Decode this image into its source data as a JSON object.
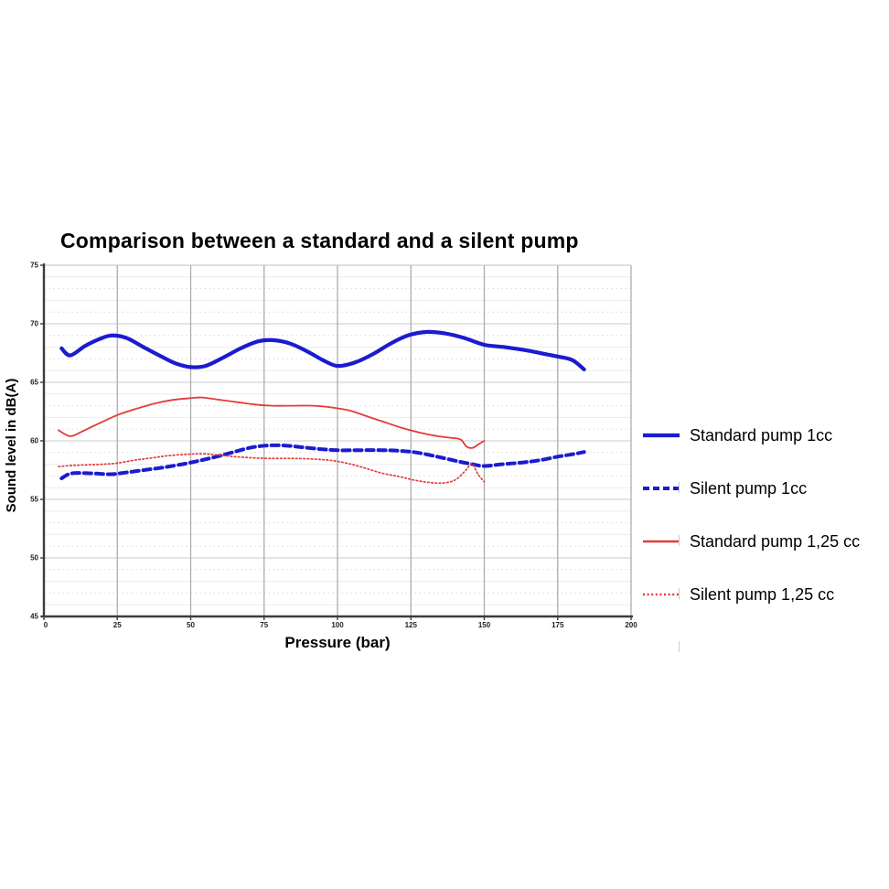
{
  "chart_data": {
    "type": "line",
    "title": "Comparison between a standard and a silent pump",
    "xlabel": "Pressure (bar)",
    "ylabel": "Sound level in dB(A)",
    "xlim": [
      0,
      200
    ],
    "ylim": [
      45,
      75
    ],
    "x_ticks": [
      0,
      25,
      50,
      75,
      100,
      125,
      150,
      175,
      200
    ],
    "y_ticks": [
      45,
      50,
      55,
      60,
      65,
      70,
      75
    ],
    "y_minor_step": 1,
    "grid": true,
    "legend_position": "right",
    "colors": {
      "blue": "#1b1bd0",
      "red": "#e33b3b",
      "grid_major": "#c9c9c9",
      "grid_minor": "#ebebeb",
      "grid_vertical": "#adadad",
      "axis": "#3c3c3c",
      "tick_label": "#222222"
    },
    "series": [
      {
        "name": "Standard pump 1cc",
        "color": "#1b1bd0",
        "style": "solid",
        "width": 4.2,
        "points": [
          [
            6,
            67.9
          ],
          [
            9,
            67.3
          ],
          [
            14,
            68.1
          ],
          [
            19,
            68.7
          ],
          [
            23,
            69.0
          ],
          [
            28,
            68.8
          ],
          [
            34,
            68.0
          ],
          [
            40,
            67.2
          ],
          [
            45,
            66.6
          ],
          [
            50,
            66.3
          ],
          [
            55,
            66.4
          ],
          [
            61,
            67.1
          ],
          [
            67,
            67.9
          ],
          [
            73,
            68.5
          ],
          [
            78,
            68.6
          ],
          [
            84,
            68.3
          ],
          [
            90,
            67.6
          ],
          [
            95,
            66.9
          ],
          [
            100,
            66.4
          ],
          [
            106,
            66.7
          ],
          [
            112,
            67.4
          ],
          [
            118,
            68.3
          ],
          [
            124,
            69.0
          ],
          [
            130,
            69.3
          ],
          [
            136,
            69.2
          ],
          [
            143,
            68.8
          ],
          [
            150,
            68.2
          ],
          [
            157,
            68.0
          ],
          [
            165,
            67.7
          ],
          [
            171,
            67.4
          ],
          [
            175,
            67.2
          ],
          [
            180,
            66.9
          ],
          [
            184,
            66.1
          ]
        ]
      },
      {
        "name": "Silent pump 1cc",
        "color": "#1b1bd0",
        "style": "dashed",
        "width": 4.0,
        "points": [
          [
            6,
            56.8
          ],
          [
            9,
            57.2
          ],
          [
            13,
            57.25
          ],
          [
            18,
            57.2
          ],
          [
            23,
            57.15
          ],
          [
            28,
            57.3
          ],
          [
            34,
            57.5
          ],
          [
            40,
            57.7
          ],
          [
            46,
            57.95
          ],
          [
            52,
            58.25
          ],
          [
            58,
            58.6
          ],
          [
            64,
            59.0
          ],
          [
            70,
            59.4
          ],
          [
            76,
            59.6
          ],
          [
            82,
            59.6
          ],
          [
            88,
            59.45
          ],
          [
            94,
            59.3
          ],
          [
            100,
            59.2
          ],
          [
            108,
            59.2
          ],
          [
            115,
            59.2
          ],
          [
            121,
            59.15
          ],
          [
            127,
            59.0
          ],
          [
            134,
            58.65
          ],
          [
            141,
            58.25
          ],
          [
            146,
            58.0
          ],
          [
            150,
            57.85
          ],
          [
            156,
            58.0
          ],
          [
            163,
            58.15
          ],
          [
            169,
            58.35
          ],
          [
            175,
            58.65
          ],
          [
            180,
            58.85
          ],
          [
            184,
            59.05
          ]
        ]
      },
      {
        "name": "Standard pump 1,25 cc",
        "color": "#e33b3b",
        "style": "solid",
        "width": 1.8,
        "points": [
          [
            5,
            60.9
          ],
          [
            9,
            60.4
          ],
          [
            13,
            60.8
          ],
          [
            18,
            61.4
          ],
          [
            25,
            62.2
          ],
          [
            31,
            62.7
          ],
          [
            38,
            63.2
          ],
          [
            44,
            63.5
          ],
          [
            50,
            63.65
          ],
          [
            54,
            63.7
          ],
          [
            60,
            63.5
          ],
          [
            66,
            63.3
          ],
          [
            72,
            63.1
          ],
          [
            78,
            63.0
          ],
          [
            85,
            63.0
          ],
          [
            92,
            63.0
          ],
          [
            98,
            62.85
          ],
          [
            104,
            62.6
          ],
          [
            110,
            62.1
          ],
          [
            116,
            61.6
          ],
          [
            122,
            61.1
          ],
          [
            128,
            60.7
          ],
          [
            134,
            60.4
          ],
          [
            139,
            60.25
          ],
          [
            142,
            60.1
          ],
          [
            144,
            59.5
          ],
          [
            146,
            59.4
          ],
          [
            148,
            59.7
          ],
          [
            150,
            60.0
          ]
        ]
      },
      {
        "name": "Silent pump 1,25 cc",
        "color": "#e33b3b",
        "style": "dotted",
        "width": 1.7,
        "points": [
          [
            5,
            57.8
          ],
          [
            10,
            57.9
          ],
          [
            15,
            57.95
          ],
          [
            20,
            58.0
          ],
          [
            25,
            58.1
          ],
          [
            31,
            58.35
          ],
          [
            37,
            58.55
          ],
          [
            43,
            58.75
          ],
          [
            49,
            58.85
          ],
          [
            54,
            58.9
          ],
          [
            59,
            58.8
          ],
          [
            65,
            58.65
          ],
          [
            71,
            58.55
          ],
          [
            77,
            58.5
          ],
          [
            84,
            58.5
          ],
          [
            91,
            58.45
          ],
          [
            97,
            58.35
          ],
          [
            103,
            58.1
          ],
          [
            109,
            57.7
          ],
          [
            115,
            57.25
          ],
          [
            121,
            56.95
          ],
          [
            126,
            56.65
          ],
          [
            131,
            56.45
          ],
          [
            136,
            56.4
          ],
          [
            140,
            56.65
          ],
          [
            143,
            57.3
          ],
          [
            145,
            57.9
          ],
          [
            146,
            58.0
          ],
          [
            148,
            57.1
          ],
          [
            150,
            56.5
          ]
        ]
      }
    ]
  }
}
